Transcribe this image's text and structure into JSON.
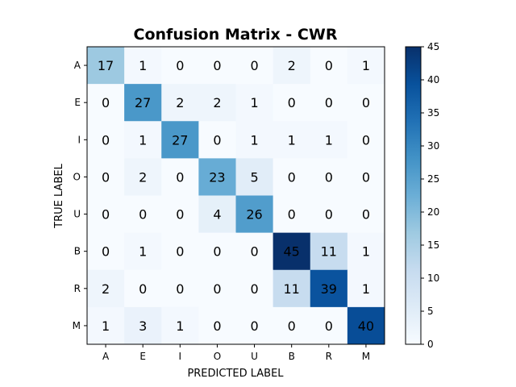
{
  "chart_data": {
    "type": "heatmap",
    "title": "Confusion Matrix - CWR",
    "xlabel": "PREDICTED LABEL",
    "ylabel": "TRUE LABEL",
    "x_categories": [
      "A",
      "E",
      "I",
      "O",
      "U",
      "B",
      "R",
      "M"
    ],
    "y_categories": [
      "A",
      "E",
      "I",
      "O",
      "U",
      "B",
      "R",
      "M"
    ],
    "matrix": [
      [
        17,
        1,
        0,
        0,
        0,
        2,
        0,
        1
      ],
      [
        0,
        27,
        2,
        2,
        1,
        0,
        0,
        0
      ],
      [
        0,
        1,
        27,
        0,
        1,
        1,
        1,
        0
      ],
      [
        0,
        2,
        0,
        23,
        5,
        0,
        0,
        0
      ],
      [
        0,
        0,
        0,
        4,
        26,
        0,
        0,
        0
      ],
      [
        0,
        1,
        0,
        0,
        0,
        45,
        11,
        1
      ],
      [
        2,
        0,
        0,
        0,
        0,
        11,
        39,
        1
      ],
      [
        1,
        3,
        1,
        0,
        0,
        0,
        0,
        40
      ]
    ],
    "colorbar": {
      "min": 0,
      "max": 45,
      "ticks": [
        0,
        5,
        10,
        15,
        20,
        25,
        30,
        35,
        40,
        45
      ]
    },
    "colormap": "Blues",
    "grid": false
  }
}
